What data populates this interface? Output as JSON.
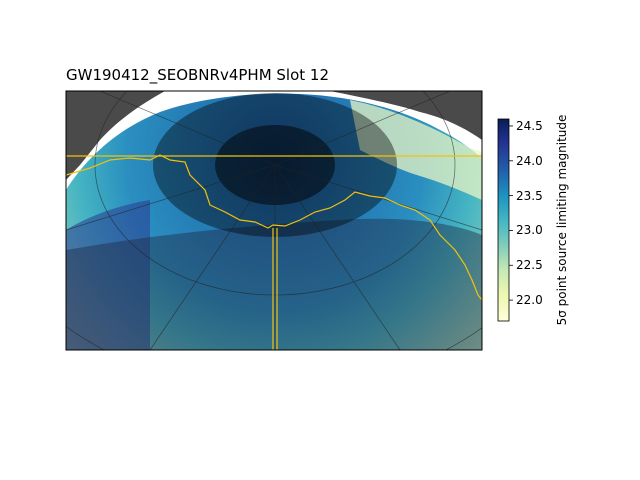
{
  "title": "GW190412_SEOBNRv4PHM Slot 12",
  "colorbar": {
    "label": "5σ point source limiting magnitude",
    "ticks": [
      "24.5",
      "24.0",
      "23.5",
      "23.0",
      "22.5",
      "22.0"
    ],
    "tick_values": [
      24.5,
      24.0,
      23.5,
      23.0,
      22.5,
      22.0
    ],
    "range": [
      21.7,
      24.6
    ],
    "colormap": [
      "#ffffd9",
      "#edf8b1",
      "#c7e9b4",
      "#7fcdbb",
      "#41b6c4",
      "#1d91c0",
      "#225ea8",
      "#253494",
      "#081d58"
    ]
  },
  "colors": {
    "no_data": "#4a4a4a",
    "shadow": "#000000",
    "contour": "#f2c20b",
    "graticule": "#222222"
  }
}
